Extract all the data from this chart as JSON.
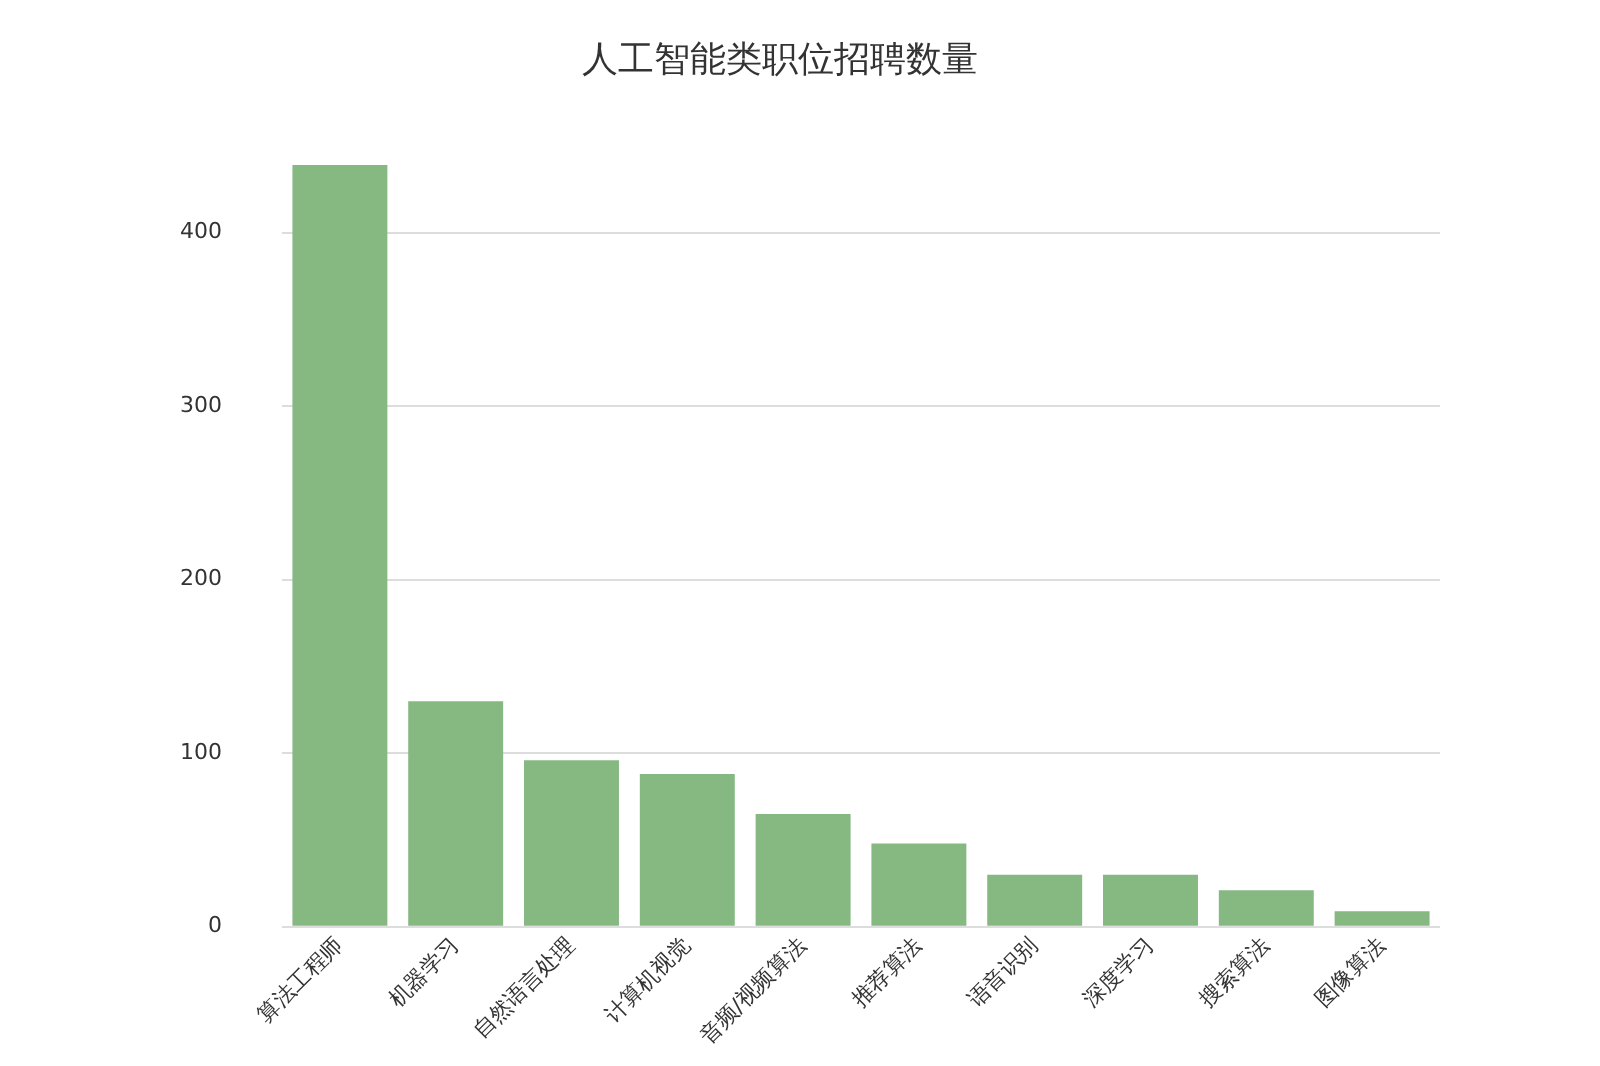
{
  "chart_data": {
    "type": "bar",
    "title": "人工智能类职位招聘数量",
    "categories": [
      "算法工程师",
      "机器学习",
      "自然语言处理",
      "计算机视觉",
      "音频/视频算法",
      "推荐算法",
      "语音识别",
      "深度学习",
      "搜索算法",
      "图像算法"
    ],
    "values": [
      439,
      130,
      96,
      88,
      65,
      48,
      30,
      30,
      21,
      9
    ],
    "color": "#86b882",
    "ylim": [
      0,
      440
    ],
    "yticks": [
      0,
      100,
      200,
      300,
      400
    ],
    "grid": "y"
  }
}
